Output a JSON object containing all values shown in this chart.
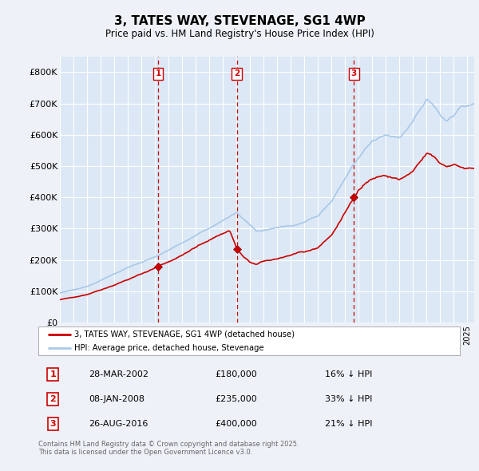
{
  "title": "3, TATES WAY, STEVENAGE, SG1 4WP",
  "subtitle": "Price paid vs. HM Land Registry's House Price Index (HPI)",
  "hpi_color": "#a8c8e8",
  "price_color": "#cc0000",
  "dashed_line_color": "#cc0000",
  "background_color": "#eef2f8",
  "plot_bg_color": "#dce8f5",
  "grid_color": "#ffffff",
  "ylim": [
    0,
    850000
  ],
  "yticks": [
    0,
    100000,
    200000,
    300000,
    400000,
    500000,
    600000,
    700000,
    800000
  ],
  "ytick_labels": [
    "£0",
    "£100K",
    "£200K",
    "£300K",
    "£400K",
    "£500K",
    "£600K",
    "£700K",
    "£800K"
  ],
  "transactions": [
    {
      "label": "1",
      "date": "28-MAR-2002",
      "price": 180000,
      "hpi_pct": "16% ↓ HPI",
      "x": 2002.24
    },
    {
      "label": "2",
      "date": "08-JAN-2008",
      "price": 235000,
      "hpi_pct": "33% ↓ HPI",
      "x": 2008.03
    },
    {
      "label": "3",
      "date": "26-AUG-2016",
      "price": 400000,
      "hpi_pct": "21% ↓ HPI",
      "x": 2016.65
    }
  ],
  "legend_entries": [
    "3, TATES WAY, STEVENAGE, SG1 4WP (detached house)",
    "HPI: Average price, detached house, Stevenage"
  ],
  "footer": "Contains HM Land Registry data © Crown copyright and database right 2025.\nThis data is licensed under the Open Government Licence v3.0.",
  "xmin": 1995.0,
  "xmax": 2025.5
}
